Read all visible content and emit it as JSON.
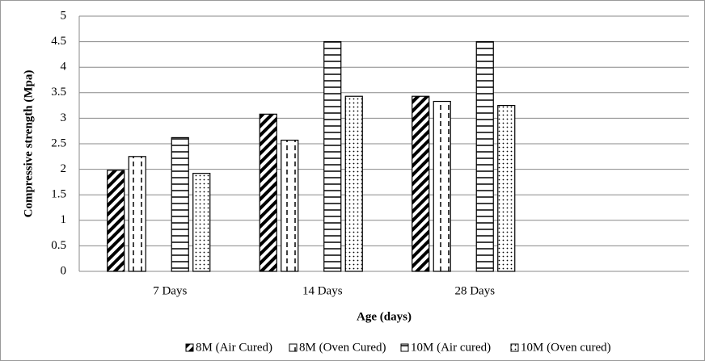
{
  "chart_data": {
    "type": "bar",
    "x_label": "Age (days)",
    "y_label": "Compressive strength (Mpa)",
    "categories": [
      "7 Days",
      "14 Days",
      "28 Days",
      null
    ],
    "series": [
      {
        "name": "8M (Air Cured)",
        "color": "#000000",
        "values": [
          1.98,
          3.08,
          3.43,
          null
        ]
      },
      {
        "name": "8M (Oven Cured)",
        "color": "#000000",
        "values": [
          2.25,
          2.57,
          3.33,
          null
        ]
      },
      {
        "name": "10M (Air cured)",
        "color": "#000000",
        "values": [
          2.62,
          4.5,
          4.5,
          null
        ]
      },
      {
        "name": "10M (Oven cured)",
        "color": "#000000",
        "values": [
          1.92,
          3.43,
          3.25,
          null
        ]
      }
    ],
    "ylim": [
      0,
      5
    ],
    "yticks": [
      0,
      0.5,
      1,
      1.5,
      2,
      2.5,
      3,
      3.5,
      4,
      4.5,
      5
    ],
    "grid": true,
    "legend": "bottom"
  }
}
